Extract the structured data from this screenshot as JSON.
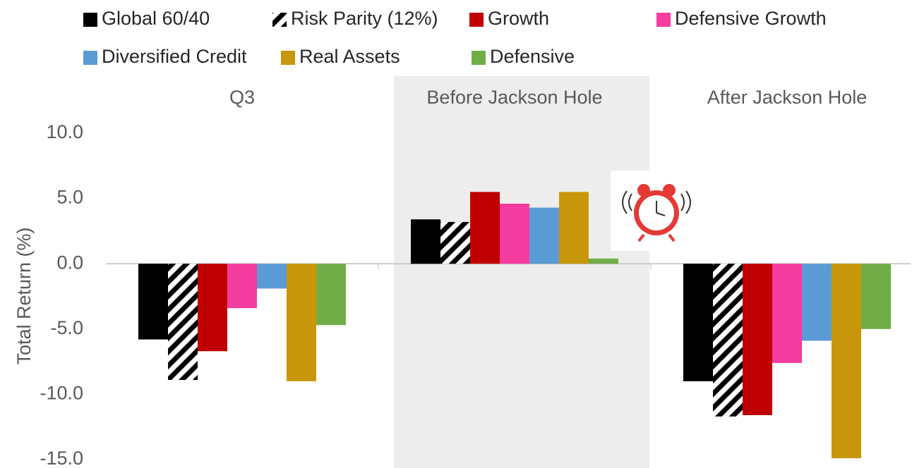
{
  "chart_data": {
    "type": "bar",
    "y_label": "Total Return (%)",
    "categories": [
      "Q3",
      "Before Jackson Hole",
      "After Jackson Hole"
    ],
    "highlight_category": 1,
    "series": [
      {
        "name": "Global 60/40",
        "color": "#000000",
        "values": [
          -5.8,
          3.4,
          -9.0
        ]
      },
      {
        "name": "Risk Parity (12%)",
        "color": "#000000",
        "pattern": "hatch",
        "values": [
          -8.9,
          3.2,
          -11.7
        ]
      },
      {
        "name": "Growth",
        "color": "#c00000",
        "values": [
          -6.7,
          5.5,
          -11.6
        ]
      },
      {
        "name": "Defensive Growth",
        "color": "#f53ca0",
        "values": [
          -3.4,
          4.6,
          -7.6
        ]
      },
      {
        "name": "Diversified Credit",
        "color": "#5b9bd5",
        "values": [
          -1.9,
          4.3,
          -5.9
        ]
      },
      {
        "name": "Real Assets",
        "color": "#c8960a",
        "values": [
          -9.0,
          5.5,
          -14.9
        ]
      },
      {
        "name": "Defensive",
        "color": "#70ad47",
        "values": [
          -4.7,
          0.4,
          -5.0
        ]
      }
    ],
    "ylim": [
      -15,
      10
    ],
    "yticks": [
      {
        "value": -15,
        "label": "-15.0"
      },
      {
        "value": -10,
        "label": "-10.0"
      },
      {
        "value": -5,
        "label": "-5.0"
      },
      {
        "value": 0,
        "label": "0.0"
      },
      {
        "value": 5,
        "label": "5.0"
      },
      {
        "value": 10,
        "label": "10.0"
      }
    ],
    "grid": false
  }
}
